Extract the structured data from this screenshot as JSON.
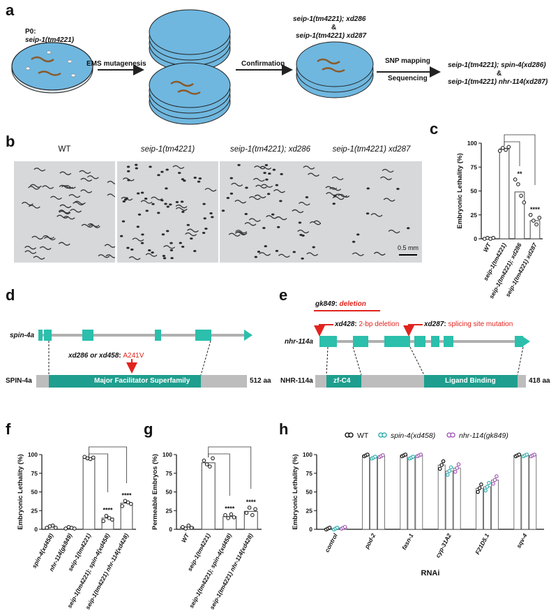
{
  "panel_labels": {
    "a": "a",
    "b": "b",
    "c": "c",
    "d": "d",
    "e": "e",
    "f": "f",
    "g": "g",
    "h": "h"
  },
  "panel_a": {
    "p0_label": "P0:",
    "p0_strain": "seip-1(tm4221)",
    "step1": "EMS mutagenesis",
    "step2": "Confirmation",
    "confirmed_line1": "seip-1(tm4221); xd286",
    "amp1": "&",
    "confirmed_line2": "seip-1(tm4221) xd287",
    "step3": "SNP mapping",
    "step4": "Sequencing",
    "result_line1": "seip-1(tm4221); spin-4(xd286)",
    "amp2": "&",
    "result_line2": "seip-1(tm4221) nhr-114(xd287)"
  },
  "panel_b": {
    "titles": [
      "WT",
      "seip-1(tm4221)",
      "seip-1(tm4221); xd286",
      "seip-1(tm4221) xd287"
    ],
    "scale_bar": "0.5 mm"
  },
  "panel_d": {
    "gene_label": "spin-4a",
    "mutation_label": "xd286 or xd458",
    "mutation_aa": "A241V",
    "protein_label": "SPIN-4a",
    "domain": "Major Facilitator Superfamily",
    "length": "512 aa"
  },
  "panel_e": {
    "deletion_allele": "gk849",
    "deletion_label": "deletion",
    "allele1": "xd428",
    "allele1_desc": "2-bp deletion",
    "allele2": "xd287",
    "allele2_desc": "splicing site mutation",
    "gene_label": "nhr-114a",
    "protein_label": "NHR-114a",
    "domain1": "zf-C4",
    "domain2": "Ligand Binding",
    "length": "418 aa"
  },
  "colors": {
    "teal": "#1e9e8e",
    "gene_teal": "#2bbfac",
    "red": "#e0241e",
    "plate": "#6fb7df",
    "legend_wt": "#000000",
    "legend_spin4": "#1fa8a8",
    "legend_nhr114": "#9b4fb0"
  },
  "chart_data": [
    {
      "panel": "c",
      "type": "bar",
      "ylabel": "Embryonic Lethality (%)",
      "ylim": [
        0,
        100
      ],
      "yticks": [
        0,
        25,
        50,
        75,
        100
      ],
      "categories": [
        "WT",
        "seip-1(tm4221)",
        "seip-1(tm4221); xd286",
        "seip-1(tm4221) xd287"
      ],
      "values": [
        1,
        94,
        49,
        19
      ],
      "points": [
        [
          0,
          1,
          0,
          1
        ],
        [
          92,
          95,
          93,
          96
        ],
        [
          62,
          57,
          45,
          38
        ],
        [
          25,
          19,
          15,
          22
        ]
      ],
      "annotations": [
        "",
        "",
        "**",
        "****"
      ]
    },
    {
      "panel": "f",
      "type": "bar",
      "ylabel": "Embryonic Lethality (%)",
      "ylim": [
        0,
        100
      ],
      "yticks": [
        0,
        25,
        50,
        75,
        100
      ],
      "categories": [
        "spin-4(xd458)",
        "nhr-114(gk849)",
        "seip-1(tm4221)",
        "seip-1(tm4221); spin-4(xd458)",
        "seip-1(tm4221) nhr-114(xd428)"
      ],
      "values": [
        3,
        2,
        95,
        15,
        35
      ],
      "points": [
        [
          2,
          4,
          5,
          2
        ],
        [
          1,
          3,
          2,
          1
        ],
        [
          97,
          95,
          94,
          96
        ],
        [
          11,
          18,
          15,
          13
        ],
        [
          31,
          38,
          36,
          34
        ]
      ],
      "annotations": [
        "",
        "",
        "",
        "****",
        "****"
      ]
    },
    {
      "panel": "g",
      "type": "bar",
      "ylabel": "Permeable Embryos (%)",
      "ylim": [
        0,
        100
      ],
      "yticks": [
        0,
        25,
        50,
        75,
        100
      ],
      "categories": [
        "WT",
        "seip-1(tm4221)",
        "seip-1(tm4221); spin-4(xd458)",
        "seip-1(tm4221) nhr-114(xd428)"
      ],
      "values": [
        3,
        89,
        17,
        24
      ],
      "points": [
        [
          3,
          1,
          5,
          2
        ],
        [
          92,
          87,
          84,
          95
        ],
        [
          19,
          15,
          20,
          16
        ],
        [
          22,
          29,
          19,
          27
        ]
      ],
      "annotations": [
        "",
        "",
        "****",
        "****"
      ]
    },
    {
      "panel": "h",
      "type": "bar",
      "ylabel": "Embryonic Lethality (%)",
      "xlabel": "RNAi",
      "ylim": [
        0,
        100
      ],
      "yticks": [
        0,
        25,
        50,
        75,
        100
      ],
      "categories": [
        "control",
        "pod-2",
        "fasn-1",
        "cyp-31A2",
        "F21D5.1",
        "sqv-4"
      ],
      "series": [
        {
          "name": "WT",
          "values": [
            1,
            99,
            99,
            86,
            55,
            99
          ]
        },
        {
          "name": "spin-4(xd458)",
          "values": [
            1,
            96,
            96,
            78,
            57,
            99
          ]
        },
        {
          "name": "nhr-114(gk849)",
          "values": [
            2,
            98,
            99,
            82,
            66,
            99
          ]
        }
      ]
    }
  ]
}
